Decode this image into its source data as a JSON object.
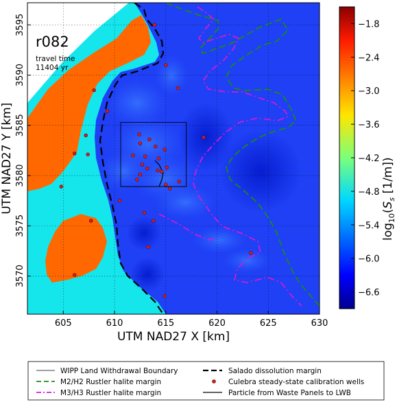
{
  "chart_data": {
    "type": "heatmap",
    "title": "",
    "annotation": {
      "label": "r082",
      "travel_time_label": "travel time",
      "travel_time_value": "11404 yr"
    },
    "xlabel": "UTM NAD27 X [km]",
    "ylabel": "UTM NAD27 Y [km]",
    "xlim": [
      601.5,
      630
    ],
    "ylim": [
      3566.2,
      3597.2
    ],
    "xticks": [
      605,
      610,
      615,
      620,
      625,
      630
    ],
    "yticks": [
      3570,
      3575,
      3580,
      3585,
      3590,
      3595
    ],
    "grid": true,
    "colorbar": {
      "label": "log10(Ss [1/m])",
      "range": [
        -6.9,
        -1.5
      ],
      "ticks": [
        -1.8,
        -2.4,
        -3.0,
        -3.6,
        -4.2,
        -4.8,
        -5.4,
        -6.0,
        -6.6
      ],
      "tick_labels": [
        "−1.8",
        "−2.4",
        "−3.0",
        "−3.6",
        "−4.2",
        "−4.8",
        "−5.4",
        "−6.0",
        "−6.6"
      ]
    },
    "wipp_boundary": [
      [
        610.6,
        3578.9
      ],
      [
        617.0,
        3578.9
      ],
      [
        617.0,
        3585.3
      ],
      [
        610.6,
        3585.3
      ]
    ],
    "wells": [
      [
        613.9,
        3595.0
      ],
      [
        615.0,
        3591.0
      ],
      [
        608.0,
        3588.5
      ],
      [
        616.2,
        3588.7
      ],
      [
        609.3,
        3586.4
      ],
      [
        607.2,
        3584.0
      ],
      [
        612.4,
        3584.1
      ],
      [
        618.7,
        3583.8
      ],
      [
        606.1,
        3582.2
      ],
      [
        607.4,
        3582.1
      ],
      [
        612.5,
        3583.2
      ],
      [
        613.4,
        3583.6
      ],
      [
        614.0,
        3582.9
      ],
      [
        614.9,
        3582.6
      ],
      [
        611.8,
        3582.0
      ],
      [
        613.0,
        3581.9
      ],
      [
        614.3,
        3581.7
      ],
      [
        612.7,
        3581.1
      ],
      [
        613.2,
        3580.7
      ],
      [
        614.2,
        3580.5
      ],
      [
        614.6,
        3580.4
      ],
      [
        615.1,
        3580.8
      ],
      [
        612.5,
        3580.1
      ],
      [
        612.2,
        3579.6
      ],
      [
        615.0,
        3579.1
      ],
      [
        615.4,
        3578.7
      ],
      [
        616.3,
        3579.4
      ],
      [
        610.5,
        3577.5
      ],
      [
        612.9,
        3576.3
      ],
      [
        613.8,
        3575.5
      ],
      [
        604.8,
        3578.9
      ],
      [
        607.7,
        3575.5
      ],
      [
        613.3,
        3572.9
      ],
      [
        623.3,
        3572.3
      ],
      [
        606.1,
        3570.1
      ],
      [
        614.9,
        3568.0
      ]
    ],
    "legend": {
      "entries": [
        "WIPP Land Withdrawal Boundary",
        "Salado dissolution margin",
        "M2/H2 Rustler halite margin",
        "Culebra steady-state calibration wells",
        "M3/H3 Rustler halite margin",
        "Particle from Waste Panels to LWB"
      ],
      "placement": "below"
    }
  }
}
